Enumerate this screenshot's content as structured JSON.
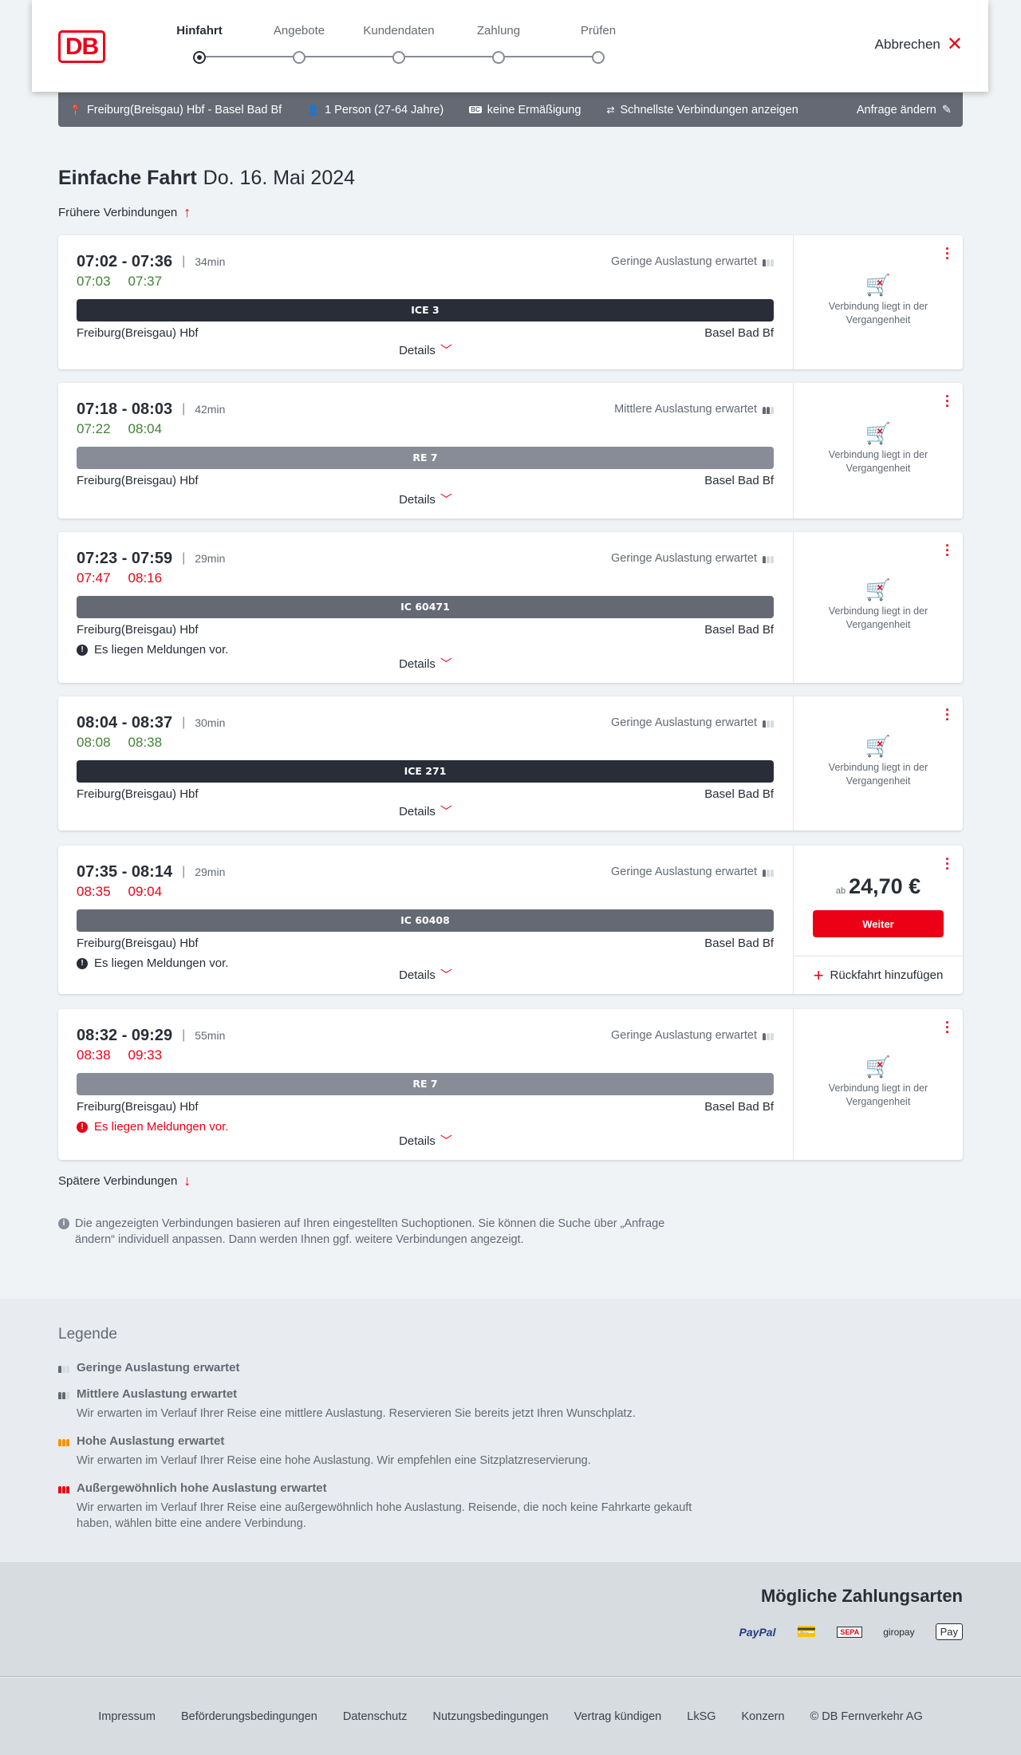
{
  "header": {
    "logo": "DB",
    "steps": [
      "Hinfahrt",
      "Angebote",
      "Kundendaten",
      "Zahlung",
      "Prüfen"
    ],
    "active_step": 0,
    "cancel": "Abbrechen"
  },
  "filter": {
    "route": "Freiburg(Breisgau) Hbf - Basel Bad Bf",
    "travellers": "1 Person (27-64 Jahre)",
    "discount": "keine Ermäßigung",
    "fastest": "Schnellste Verbindungen anzeigen",
    "edit": "Anfrage ändern"
  },
  "title": {
    "type": "Einfache Fahrt",
    "date": "Do. 16. Mai 2024"
  },
  "earlier": "Frühere Verbindungen",
  "later": "Spätere Verbindungen",
  "colors": {
    "accent": "#ec0016",
    "on_time": "#408335",
    "delayed": "#ec0016",
    "ice": "#282d37",
    "ic": "#646973",
    "re": "#878c96"
  },
  "connections": [
    {
      "times": "07:02 - 07:36",
      "duration": "34min",
      "load": "Geringe Auslastung erwartet",
      "load_level": 1,
      "real_dep": "07:03",
      "real_arr": "07:37",
      "delayed": false,
      "train": "ICE 3",
      "train_type": "ice",
      "from": "Freiburg(Breisgau) Hbf",
      "to": "Basel Bad Bf",
      "message": "",
      "past": "Verbindung liegt in der Vergangenheit"
    },
    {
      "times": "07:18 - 08:03",
      "duration": "42min",
      "load": "Mittlere Auslastung erwartet",
      "load_level": 2,
      "real_dep": "07:22",
      "real_arr": "08:04",
      "delayed": false,
      "train": "RE 7",
      "train_type": "re",
      "from": "Freiburg(Breisgau) Hbf",
      "to": "Basel Bad Bf",
      "message": "",
      "past": "Verbindung liegt in der Vergangenheit"
    },
    {
      "times": "07:23 - 07:59",
      "duration": "29min",
      "load": "Geringe Auslastung erwartet",
      "load_level": 1,
      "real_dep": "07:47",
      "real_arr": "08:16",
      "delayed": true,
      "train": "IC 60471",
      "train_type": "ic",
      "from": "Freiburg(Breisgau) Hbf",
      "to": "Basel Bad Bf",
      "message": "Es liegen Meldungen vor.",
      "message_red": false,
      "past": "Verbindung liegt in der Vergangenheit"
    },
    {
      "times": "08:04 - 08:37",
      "duration": "30min",
      "load": "Geringe Auslastung erwartet",
      "load_level": 1,
      "real_dep": "08:08",
      "real_arr": "08:38",
      "delayed": false,
      "train": "ICE 271",
      "train_type": "ice",
      "from": "Freiburg(Breisgau) Hbf",
      "to": "Basel Bad Bf",
      "message": "",
      "past": "Verbindung liegt in der Vergangenheit"
    },
    {
      "times": "07:35 - 08:14",
      "duration": "29min",
      "load": "Geringe Auslastung erwartet",
      "load_level": 1,
      "real_dep": "08:35",
      "real_arr": "09:04",
      "delayed": true,
      "train": "IC 60408",
      "train_type": "ic",
      "from": "Freiburg(Breisgau) Hbf",
      "to": "Basel Bad Bf",
      "message": "Es liegen Meldungen vor.",
      "message_red": false,
      "price_prefix": "ab",
      "price": "24,70 €",
      "button": "Weiter",
      "return": "Rückfahrt hinzufügen"
    },
    {
      "times": "08:32 - 09:29",
      "duration": "55min",
      "load": "Geringe Auslastung erwartet",
      "load_level": 1,
      "real_dep": "08:38",
      "real_arr": "09:33",
      "delayed": true,
      "train": "RE 7",
      "train_type": "re",
      "from": "Freiburg(Breisgau) Hbf",
      "to": "Basel Bad Bf",
      "message": "Es liegen Meldungen vor.",
      "message_red": true,
      "past": "Verbindung liegt in der Vergangenheit"
    }
  ],
  "details_label": "Details",
  "info": "Die angezeigten Verbindungen basieren auf Ihren eingestellten Suchoptionen. Sie können die Suche über „Anfrage ändern“ individuell anpassen. Dann werden Ihnen ggf. weitere Verbindungen angezeigt.",
  "legend": {
    "title": "Legende",
    "items": [
      {
        "title": "Geringe Auslastung erwartet",
        "text": "",
        "level": "low"
      },
      {
        "title": "Mittlere Auslastung erwartet",
        "text": "Wir erwarten im Verlauf Ihrer Reise eine mittlere Auslastung. Reservieren Sie bereits jetzt Ihren Wunschplatz.",
        "level": "medium"
      },
      {
        "title": "Hohe Auslastung erwartet",
        "text": "Wir erwarten im Verlauf Ihrer Reise eine hohe Auslastung. Wir empfehlen eine Sitzplatzreservierung.",
        "level": "high"
      },
      {
        "title": "Außergewöhnlich hohe Auslastung erwartet",
        "text": "Wir erwarten im Verlauf Ihrer Reise eine außergewöhnlich hohe Auslastung. Reisende, die noch keine Fahrkarte gekauft haben, wählen bitte eine andere Verbindung.",
        "level": "extreme"
      }
    ]
  },
  "payment": {
    "title": "Mögliche Zahlungsarten",
    "methods": [
      "PayPal",
      "Kreditkarte",
      "SEPA",
      "giropay",
      "Pay"
    ]
  },
  "footer": [
    "Impressum",
    "Beförderungsbedingungen",
    "Datenschutz",
    "Nutzungsbedingungen",
    "Vertrag kündigen",
    "LkSG",
    "Konzern",
    "© DB Fernverkehr AG"
  ]
}
